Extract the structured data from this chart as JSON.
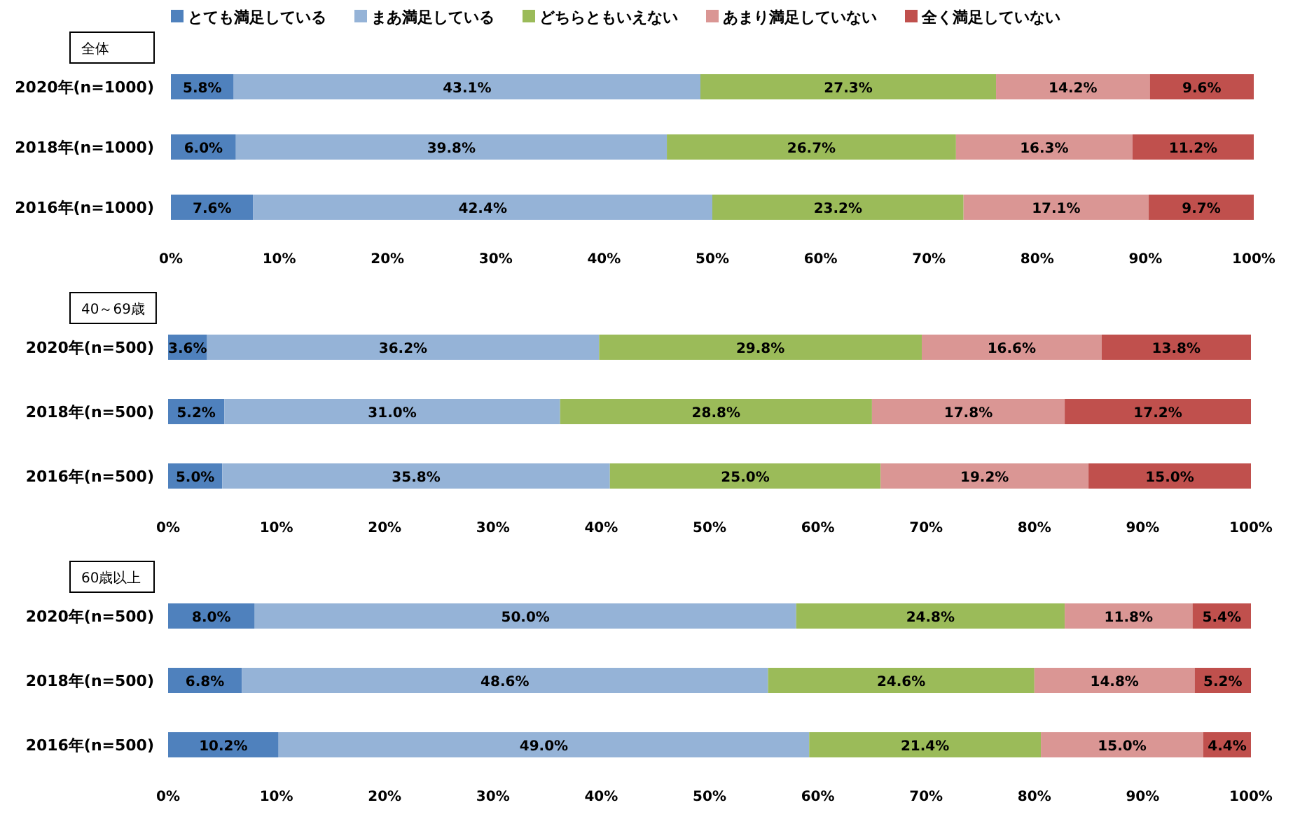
{
  "chart_data": [
    {
      "type": "bar",
      "orientation": "horizontal",
      "stacked": true,
      "title": "全体",
      "legend": "top",
      "categories": [
        "2020年(n=1000)",
        "2018年(n=1000)",
        "2016年(n=1000)"
      ],
      "xlim": [
        0,
        100
      ],
      "xticks": [
        {
          "value": 0,
          "label": "0%"
        },
        {
          "value": 10,
          "label": "10%"
        },
        {
          "value": 20,
          "label": "20%"
        },
        {
          "value": 30,
          "label": "30%"
        },
        {
          "value": 40,
          "label": "40%"
        },
        {
          "value": 50,
          "label": "50%"
        },
        {
          "value": 60,
          "label": "60%"
        },
        {
          "value": 70,
          "label": "70%"
        },
        {
          "value": 80,
          "label": "80%"
        },
        {
          "value": 90,
          "label": "90%"
        },
        {
          "value": 100,
          "label": "100%"
        }
      ],
      "series": [
        {
          "name": "とても満足している",
          "color": "#4f81bd",
          "values": [
            5.8,
            6.0,
            7.6
          ],
          "value_labels": [
            "5.8%",
            "6.0%",
            "7.6%"
          ]
        },
        {
          "name": "まあ満足している",
          "color": "#95b3d7",
          "values": [
            43.1,
            39.8,
            42.4
          ],
          "value_labels": [
            "43.1%",
            "39.8%",
            "42.4%"
          ]
        },
        {
          "name": "どちらともいえない",
          "color": "#9bbb59",
          "values": [
            27.3,
            26.7,
            23.2
          ],
          "value_labels": [
            "27.3%",
            "26.7%",
            "23.2%"
          ]
        },
        {
          "name": "あまり満足していない",
          "color": "#da9694",
          "values": [
            14.2,
            16.3,
            17.1
          ],
          "value_labels": [
            "14.2%",
            "16.3%",
            "17.1%"
          ]
        },
        {
          "name": "全く満足していない",
          "color": "#c0504d",
          "values": [
            9.6,
            11.2,
            9.7
          ],
          "value_labels": [
            "9.6%",
            "11.2%",
            "9.7%"
          ]
        }
      ]
    },
    {
      "type": "bar",
      "orientation": "horizontal",
      "stacked": true,
      "title": "40～69歳",
      "categories": [
        "2020年(n=500)",
        "2018年(n=500)",
        "2016年(n=500)"
      ],
      "xlim": [
        0,
        100
      ],
      "xticks": [
        {
          "value": 0,
          "label": "0%"
        },
        {
          "value": 10,
          "label": "10%"
        },
        {
          "value": 20,
          "label": "20%"
        },
        {
          "value": 30,
          "label": "30%"
        },
        {
          "value": 40,
          "label": "40%"
        },
        {
          "value": 50,
          "label": "50%"
        },
        {
          "value": 60,
          "label": "60%"
        },
        {
          "value": 70,
          "label": "70%"
        },
        {
          "value": 80,
          "label": "80%"
        },
        {
          "value": 90,
          "label": "90%"
        },
        {
          "value": 100,
          "label": "100%"
        }
      ],
      "series": [
        {
          "color": "#4f81bd",
          "values": [
            3.6,
            5.2,
            5.0
          ],
          "value_labels": [
            "3.6%",
            "5.2%",
            "5.0%"
          ]
        },
        {
          "color": "#95b3d7",
          "values": [
            36.2,
            31.0,
            35.8
          ],
          "value_labels": [
            "36.2%",
            "31.0%",
            "35.8%"
          ]
        },
        {
          "color": "#9bbb59",
          "values": [
            29.8,
            28.8,
            25.0
          ],
          "value_labels": [
            "29.8%",
            "28.8%",
            "25.0%"
          ]
        },
        {
          "color": "#da9694",
          "values": [
            16.6,
            17.8,
            19.2
          ],
          "value_labels": [
            "16.6%",
            "17.8%",
            "19.2%"
          ]
        },
        {
          "color": "#c0504d",
          "values": [
            13.8,
            17.2,
            15.0
          ],
          "value_labels": [
            "13.8%",
            "17.2%",
            "15.0%"
          ]
        }
      ]
    },
    {
      "type": "bar",
      "orientation": "horizontal",
      "stacked": true,
      "title": "60歳以上",
      "categories": [
        "2020年(n=500)",
        "2018年(n=500)",
        "2016年(n=500)"
      ],
      "xlim": [
        0,
        100
      ],
      "xticks": [
        {
          "value": 0,
          "label": "0%"
        },
        {
          "value": 10,
          "label": "10%"
        },
        {
          "value": 20,
          "label": "20%"
        },
        {
          "value": 30,
          "label": "30%"
        },
        {
          "value": 40,
          "label": "40%"
        },
        {
          "value": 50,
          "label": "50%"
        },
        {
          "value": 60,
          "label": "60%"
        },
        {
          "value": 70,
          "label": "70%"
        },
        {
          "value": 80,
          "label": "80%"
        },
        {
          "value": 90,
          "label": "90%"
        },
        {
          "value": 100,
          "label": "100%"
        }
      ],
      "series": [
        {
          "color": "#4f81bd",
          "values": [
            8.0,
            6.8,
            10.2
          ],
          "value_labels": [
            "8.0%",
            "6.8%",
            "10.2%"
          ]
        },
        {
          "color": "#95b3d7",
          "values": [
            50.0,
            48.6,
            49.0
          ],
          "value_labels": [
            "50.0%",
            "48.6%",
            "49.0%"
          ]
        },
        {
          "color": "#9bbb59",
          "values": [
            24.8,
            24.6,
            21.4
          ],
          "value_labels": [
            "24.8%",
            "24.6%",
            "21.4%"
          ]
        },
        {
          "color": "#da9694",
          "values": [
            11.8,
            14.8,
            15.0
          ],
          "value_labels": [
            "11.8%",
            "14.8%",
            "15.0%"
          ]
        },
        {
          "color": "#c0504d",
          "values": [
            5.4,
            5.2,
            4.4
          ],
          "value_labels": [
            "5.4%",
            "5.2%",
            "4.4%"
          ]
        }
      ]
    }
  ]
}
